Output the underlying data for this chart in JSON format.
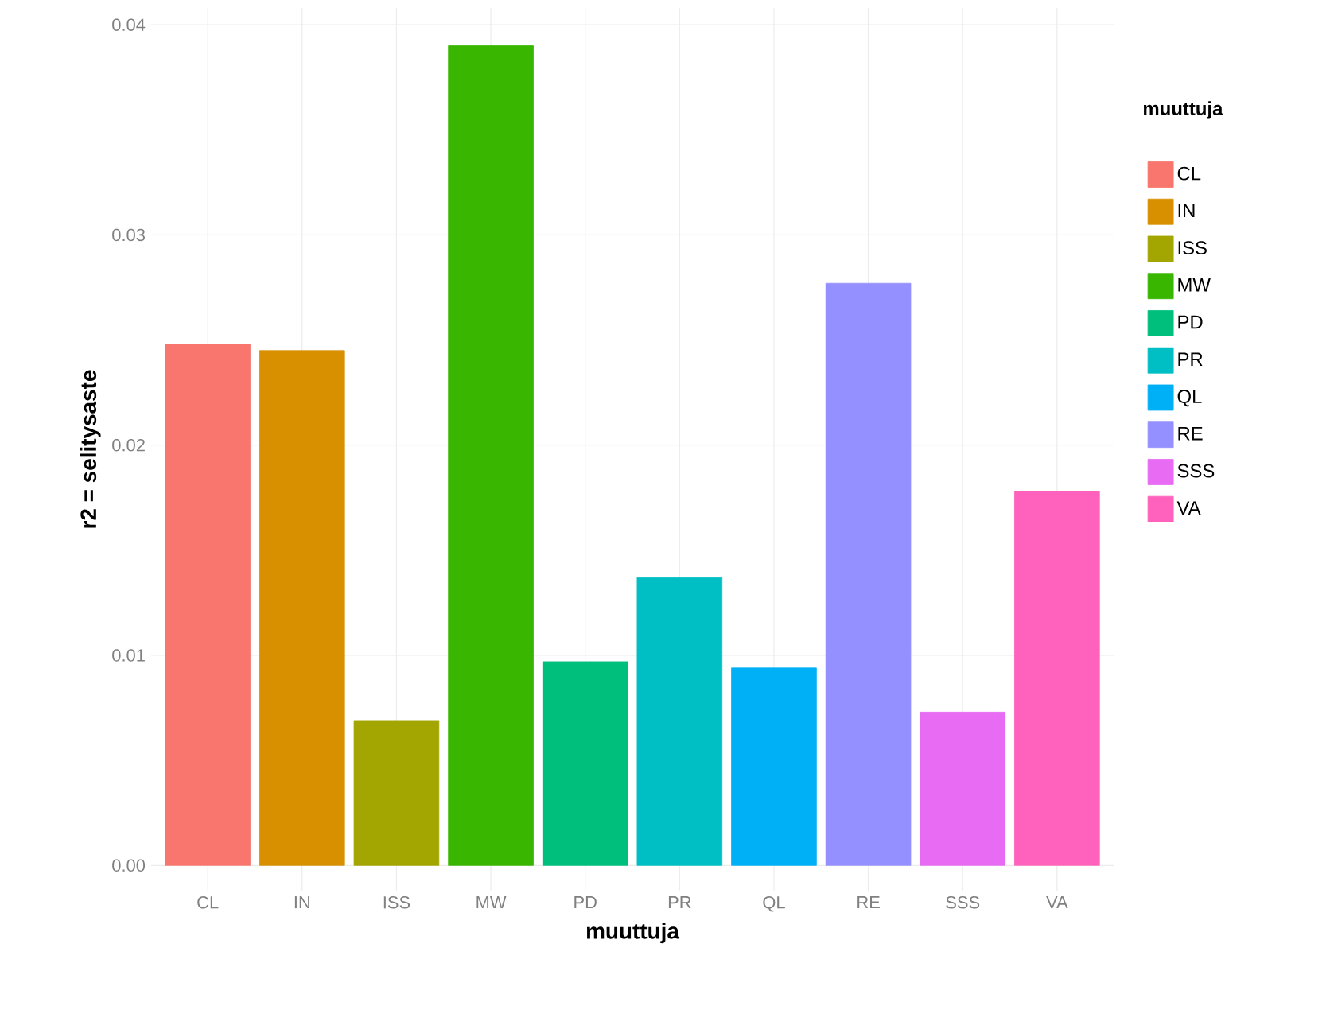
{
  "chart_data": {
    "type": "bar",
    "xlabel": "muuttuja",
    "ylabel": "r2 = selitysaste",
    "legend_title": "muuttuja",
    "categories": [
      "CL",
      "IN",
      "ISS",
      "MW",
      "PD",
      "PR",
      "QL",
      "RE",
      "SSS",
      "VA"
    ],
    "series": [
      {
        "name": "CL",
        "color": "#F8766D",
        "values": [
          0.0248,
          null,
          null,
          null,
          null,
          null,
          null,
          null,
          null,
          null
        ]
      },
      {
        "name": "IN",
        "color": "#D89000",
        "values": [
          null,
          0.0245,
          null,
          null,
          null,
          null,
          null,
          null,
          null,
          null
        ]
      },
      {
        "name": "ISS",
        "color": "#A3A500",
        "values": [
          null,
          null,
          0.0069,
          null,
          null,
          null,
          null,
          null,
          null,
          null
        ]
      },
      {
        "name": "MW",
        "color": "#39B600",
        "values": [
          null,
          null,
          null,
          0.039,
          null,
          null,
          null,
          null,
          null,
          null
        ]
      },
      {
        "name": "PD",
        "color": "#00BF7D",
        "values": [
          null,
          null,
          null,
          null,
          0.0097,
          null,
          null,
          null,
          null,
          null
        ]
      },
      {
        "name": "PR",
        "color": "#00BFC4",
        "values": [
          null,
          null,
          null,
          null,
          null,
          0.0137,
          null,
          null,
          null,
          null
        ]
      },
      {
        "name": "QL",
        "color": "#00B0F6",
        "values": [
          null,
          null,
          null,
          null,
          null,
          null,
          0.0094,
          null,
          null,
          null
        ]
      },
      {
        "name": "RE",
        "color": "#9590FF",
        "values": [
          null,
          null,
          null,
          null,
          null,
          null,
          null,
          0.0277,
          null,
          null
        ]
      },
      {
        "name": "SSS",
        "color": "#E76BF3",
        "values": [
          null,
          null,
          null,
          null,
          null,
          null,
          null,
          null,
          0.0073,
          null
        ]
      },
      {
        "name": "VA",
        "color": "#FF62BC",
        "values": [
          null,
          null,
          null,
          null,
          null,
          null,
          null,
          null,
          null,
          0.0178
        ]
      }
    ],
    "ylim": [
      -0.0012,
      0.0408
    ],
    "yticks": [
      {
        "value": 0,
        "label": "0.00"
      },
      {
        "value": 0.01,
        "label": "0.01"
      },
      {
        "value": 0.02,
        "label": "0.02"
      },
      {
        "value": 0.03,
        "label": "0.03"
      },
      {
        "value": 0.04,
        "label": "0.04"
      }
    ],
    "grid": true,
    "legend": "right"
  }
}
